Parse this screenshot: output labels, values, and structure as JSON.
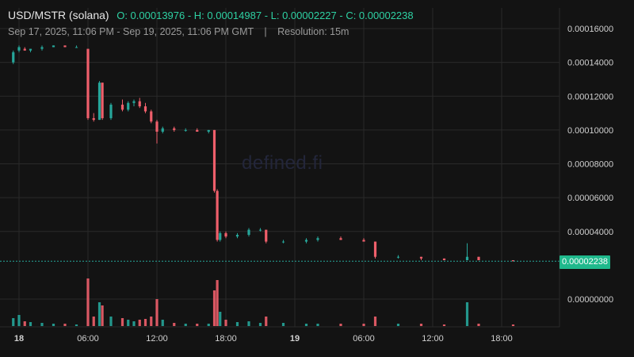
{
  "header": {
    "pair": "USD/MSTR (solana)",
    "ohlc": "O: 0.00013976 - H: 0.00014987 - L: 0.00002227 - C: 0.00002238",
    "range": "Sep 17, 2025, 11:06 PM - Sep 19, 2025, 11:06 PM GMT",
    "separator": "|",
    "resolution": "Resolution: 15m"
  },
  "watermark": "defined.fi",
  "last_price_label": "0.00002238",
  "colors": {
    "up": "#26a69a",
    "down": "#ef5f6b",
    "grid": "#2a2a2a",
    "axis_text": "#d0d0d0",
    "last_line": "#26a69a",
    "background": "#131313"
  },
  "chart_data": {
    "type": "candlestick",
    "title": "USD/MSTR (solana)",
    "resolution": "15m",
    "y_ticks": [
      "0.00000000",
      "0.00004000",
      "0.00006000",
      "0.00008000",
      "0.00010000",
      "0.00012000",
      "0.00014000",
      "0.00016000"
    ],
    "y_tick_values": [
      0,
      4e-05,
      6e-05,
      8e-05,
      0.0001,
      0.00012,
      0.00014,
      0.00016
    ],
    "x_ticks": [
      "18",
      "06:00",
      "12:00",
      "18:00",
      "19",
      "06:00",
      "12:00",
      "18:00"
    ],
    "last_price": 2.238e-05,
    "grid": true,
    "candles": [
      {
        "t": "Sep 17 23:30",
        "o": 0.00014,
        "h": 0.000147,
        "l": 0.000139,
        "c": 0.000146,
        "v": 10
      },
      {
        "t": "Sep 18 00:00",
        "o": 0.000147,
        "h": 0.00015,
        "l": 0.000146,
        "c": 0.000149,
        "v": 14
      },
      {
        "t": "Sep 18 00:30",
        "o": 0.000148,
        "h": 0.000149,
        "l": 0.000147,
        "c": 0.000147,
        "v": 6
      },
      {
        "t": "Sep 18 01:00",
        "o": 0.000147,
        "h": 0.000148,
        "l": 0.000146,
        "c": 0.000148,
        "v": 5
      },
      {
        "t": "Sep 18 02:00",
        "o": 0.000148,
        "h": 0.00015,
        "l": 0.000147,
        "c": 0.000149,
        "v": 4
      },
      {
        "t": "Sep 18 03:00",
        "o": 0.000149,
        "h": 0.00015,
        "l": 0.000149,
        "c": 0.00015,
        "v": 3
      },
      {
        "t": "Sep 18 04:00",
        "o": 0.00015,
        "h": 0.00015,
        "l": 0.000149,
        "c": 0.000149,
        "v": 3
      },
      {
        "t": "Sep 18 05:00",
        "o": 0.000149,
        "h": 0.00015,
        "l": 0.000149,
        "c": 0.000149,
        "v": 2
      },
      {
        "t": "Sep 18 06:00",
        "o": 0.000148,
        "h": 0.000148,
        "l": 0.000106,
        "c": 0.000107,
        "v": 60
      },
      {
        "t": "Sep 18 06:30",
        "o": 0.000107,
        "h": 0.00011,
        "l": 0.000105,
        "c": 0.000106,
        "v": 12
      },
      {
        "t": "Sep 18 07:00",
        "o": 0.000106,
        "h": 0.000129,
        "l": 0.000106,
        "c": 0.000128,
        "v": 30
      },
      {
        "t": "Sep 18 07:15",
        "o": 0.000128,
        "h": 0.000128,
        "l": 0.000106,
        "c": 0.000107,
        "v": 26
      },
      {
        "t": "Sep 18 08:00",
        "o": 0.000107,
        "h": 0.000116,
        "l": 0.000106,
        "c": 0.000115,
        "v": 12
      },
      {
        "t": "Sep 18 09:00",
        "o": 0.000115,
        "h": 0.000118,
        "l": 0.000111,
        "c": 0.000112,
        "v": 10
      },
      {
        "t": "Sep 18 09:30",
        "o": 0.000112,
        "h": 0.000117,
        "l": 0.000111,
        "c": 0.000116,
        "v": 8
      },
      {
        "t": "Sep 18 10:00",
        "o": 0.000116,
        "h": 0.000118,
        "l": 0.000114,
        "c": 0.000117,
        "v": 6
      },
      {
        "t": "Sep 18 10:30",
        "o": 0.000117,
        "h": 0.000119,
        "l": 0.000113,
        "c": 0.000114,
        "v": 8
      },
      {
        "t": "Sep 18 11:00",
        "o": 0.000114,
        "h": 0.000116,
        "l": 0.00011,
        "c": 0.000111,
        "v": 9
      },
      {
        "t": "Sep 18 11:30",
        "o": 0.000111,
        "h": 0.000112,
        "l": 0.000104,
        "c": 0.000105,
        "v": 12
      },
      {
        "t": "Sep 18 12:00",
        "o": 0.000105,
        "h": 0.000106,
        "l": 9.2e-05,
        "c": 9.9e-05,
        "v": 34
      },
      {
        "t": "Sep 18 12:30",
        "o": 9.9e-05,
        "h": 0.000102,
        "l": 9.8e-05,
        "c": 0.000101,
        "v": 8
      },
      {
        "t": "Sep 18 13:30",
        "o": 0.000101,
        "h": 0.000102,
        "l": 9.9e-05,
        "c": 0.0001,
        "v": 4
      },
      {
        "t": "Sep 18 14:30",
        "o": 0.0001,
        "h": 0.000101,
        "l": 9.9e-05,
        "c": 0.0001,
        "v": 3
      },
      {
        "t": "Sep 18 15:30",
        "o": 0.0001,
        "h": 0.000101,
        "l": 9.9e-05,
        "c": 9.9e-05,
        "v": 3
      },
      {
        "t": "Sep 18 16:30",
        "o": 9.9e-05,
        "h": 0.0001,
        "l": 9.8e-05,
        "c": 0.0001,
        "v": 3
      },
      {
        "t": "Sep 18 17:00",
        "o": 0.0001,
        "h": 0.0001,
        "l": 6.3e-05,
        "c": 6.4e-05,
        "v": 45
      },
      {
        "t": "Sep 18 17:15",
        "o": 6.4e-05,
        "h": 6.5e-05,
        "l": 3.4e-05,
        "c": 3.5e-05,
        "v": 58
      },
      {
        "t": "Sep 18 17:30",
        "o": 3.5e-05,
        "h": 4e-05,
        "l": 3.4e-05,
        "c": 3.9e-05,
        "v": 18
      },
      {
        "t": "Sep 18 18:00",
        "o": 3.9e-05,
        "h": 4e-05,
        "l": 3.6e-05,
        "c": 3.7e-05,
        "v": 8
      },
      {
        "t": "Sep 18 19:00",
        "o": 3.7e-05,
        "h": 3.9e-05,
        "l": 3.6e-05,
        "c": 3.8e-05,
        "v": 5
      },
      {
        "t": "Sep 18 20:00",
        "o": 3.8e-05,
        "h": 4.2e-05,
        "l": 3.7e-05,
        "c": 4.1e-05,
        "v": 6
      },
      {
        "t": "Sep 18 21:00",
        "o": 4.1e-05,
        "h": 4.2e-05,
        "l": 4e-05,
        "c": 4.1e-05,
        "v": 4
      },
      {
        "t": "Sep 18 21:30",
        "o": 4.1e-05,
        "h": 4.1e-05,
        "l": 3.3e-05,
        "c": 3.4e-05,
        "v": 12
      },
      {
        "t": "Sep 18 23:00",
        "o": 3.4e-05,
        "h": 3.5e-05,
        "l": 3.3e-05,
        "c": 3.4e-05,
        "v": 4
      },
      {
        "t": "Sep 19 01:00",
        "o": 3.4e-05,
        "h": 3.6e-05,
        "l": 3.3e-05,
        "c": 3.5e-05,
        "v": 3
      },
      {
        "t": "Sep 19 02:00",
        "o": 3.5e-05,
        "h": 3.7e-05,
        "l": 3.4e-05,
        "c": 3.6e-05,
        "v": 3
      },
      {
        "t": "Sep 19 04:00",
        "o": 3.6e-05,
        "h": 3.7e-05,
        "l": 3.5e-05,
        "c": 3.5e-05,
        "v": 3
      },
      {
        "t": "Sep 19 06:00",
        "o": 3.5e-05,
        "h": 3.6e-05,
        "l": 3.4e-05,
        "c": 3.4e-05,
        "v": 3
      },
      {
        "t": "Sep 19 07:00",
        "o": 3.4e-05,
        "h": 3.4e-05,
        "l": 2.4e-05,
        "c": 2.5e-05,
        "v": 12
      },
      {
        "t": "Sep 19 09:00",
        "o": 2.5e-05,
        "h": 2.6e-05,
        "l": 2.4e-05,
        "c": 2.5e-05,
        "v": 3
      },
      {
        "t": "Sep 19 11:00",
        "o": 2.5e-05,
        "h": 2.5e-05,
        "l": 2.3e-05,
        "c": 2.4e-05,
        "v": 3
      },
      {
        "t": "Sep 19 13:00",
        "o": 2.4e-05,
        "h": 2.4e-05,
        "l": 2.3e-05,
        "c": 2.3e-05,
        "v": 2
      },
      {
        "t": "Sep 19 15:00",
        "o": 2.3e-05,
        "h": 3.3e-05,
        "l": 2.3e-05,
        "c": 2.5e-05,
        "v": 30
      },
      {
        "t": "Sep 19 16:00",
        "o": 2.5e-05,
        "h": 2.5e-05,
        "l": 2.3e-05,
        "c": 2.3e-05,
        "v": 3
      },
      {
        "t": "Sep 19 19:00",
        "o": 2.3e-05,
        "h": 2.3e-05,
        "l": 2.23e-05,
        "c": 2.24e-05,
        "v": 2
      }
    ]
  }
}
